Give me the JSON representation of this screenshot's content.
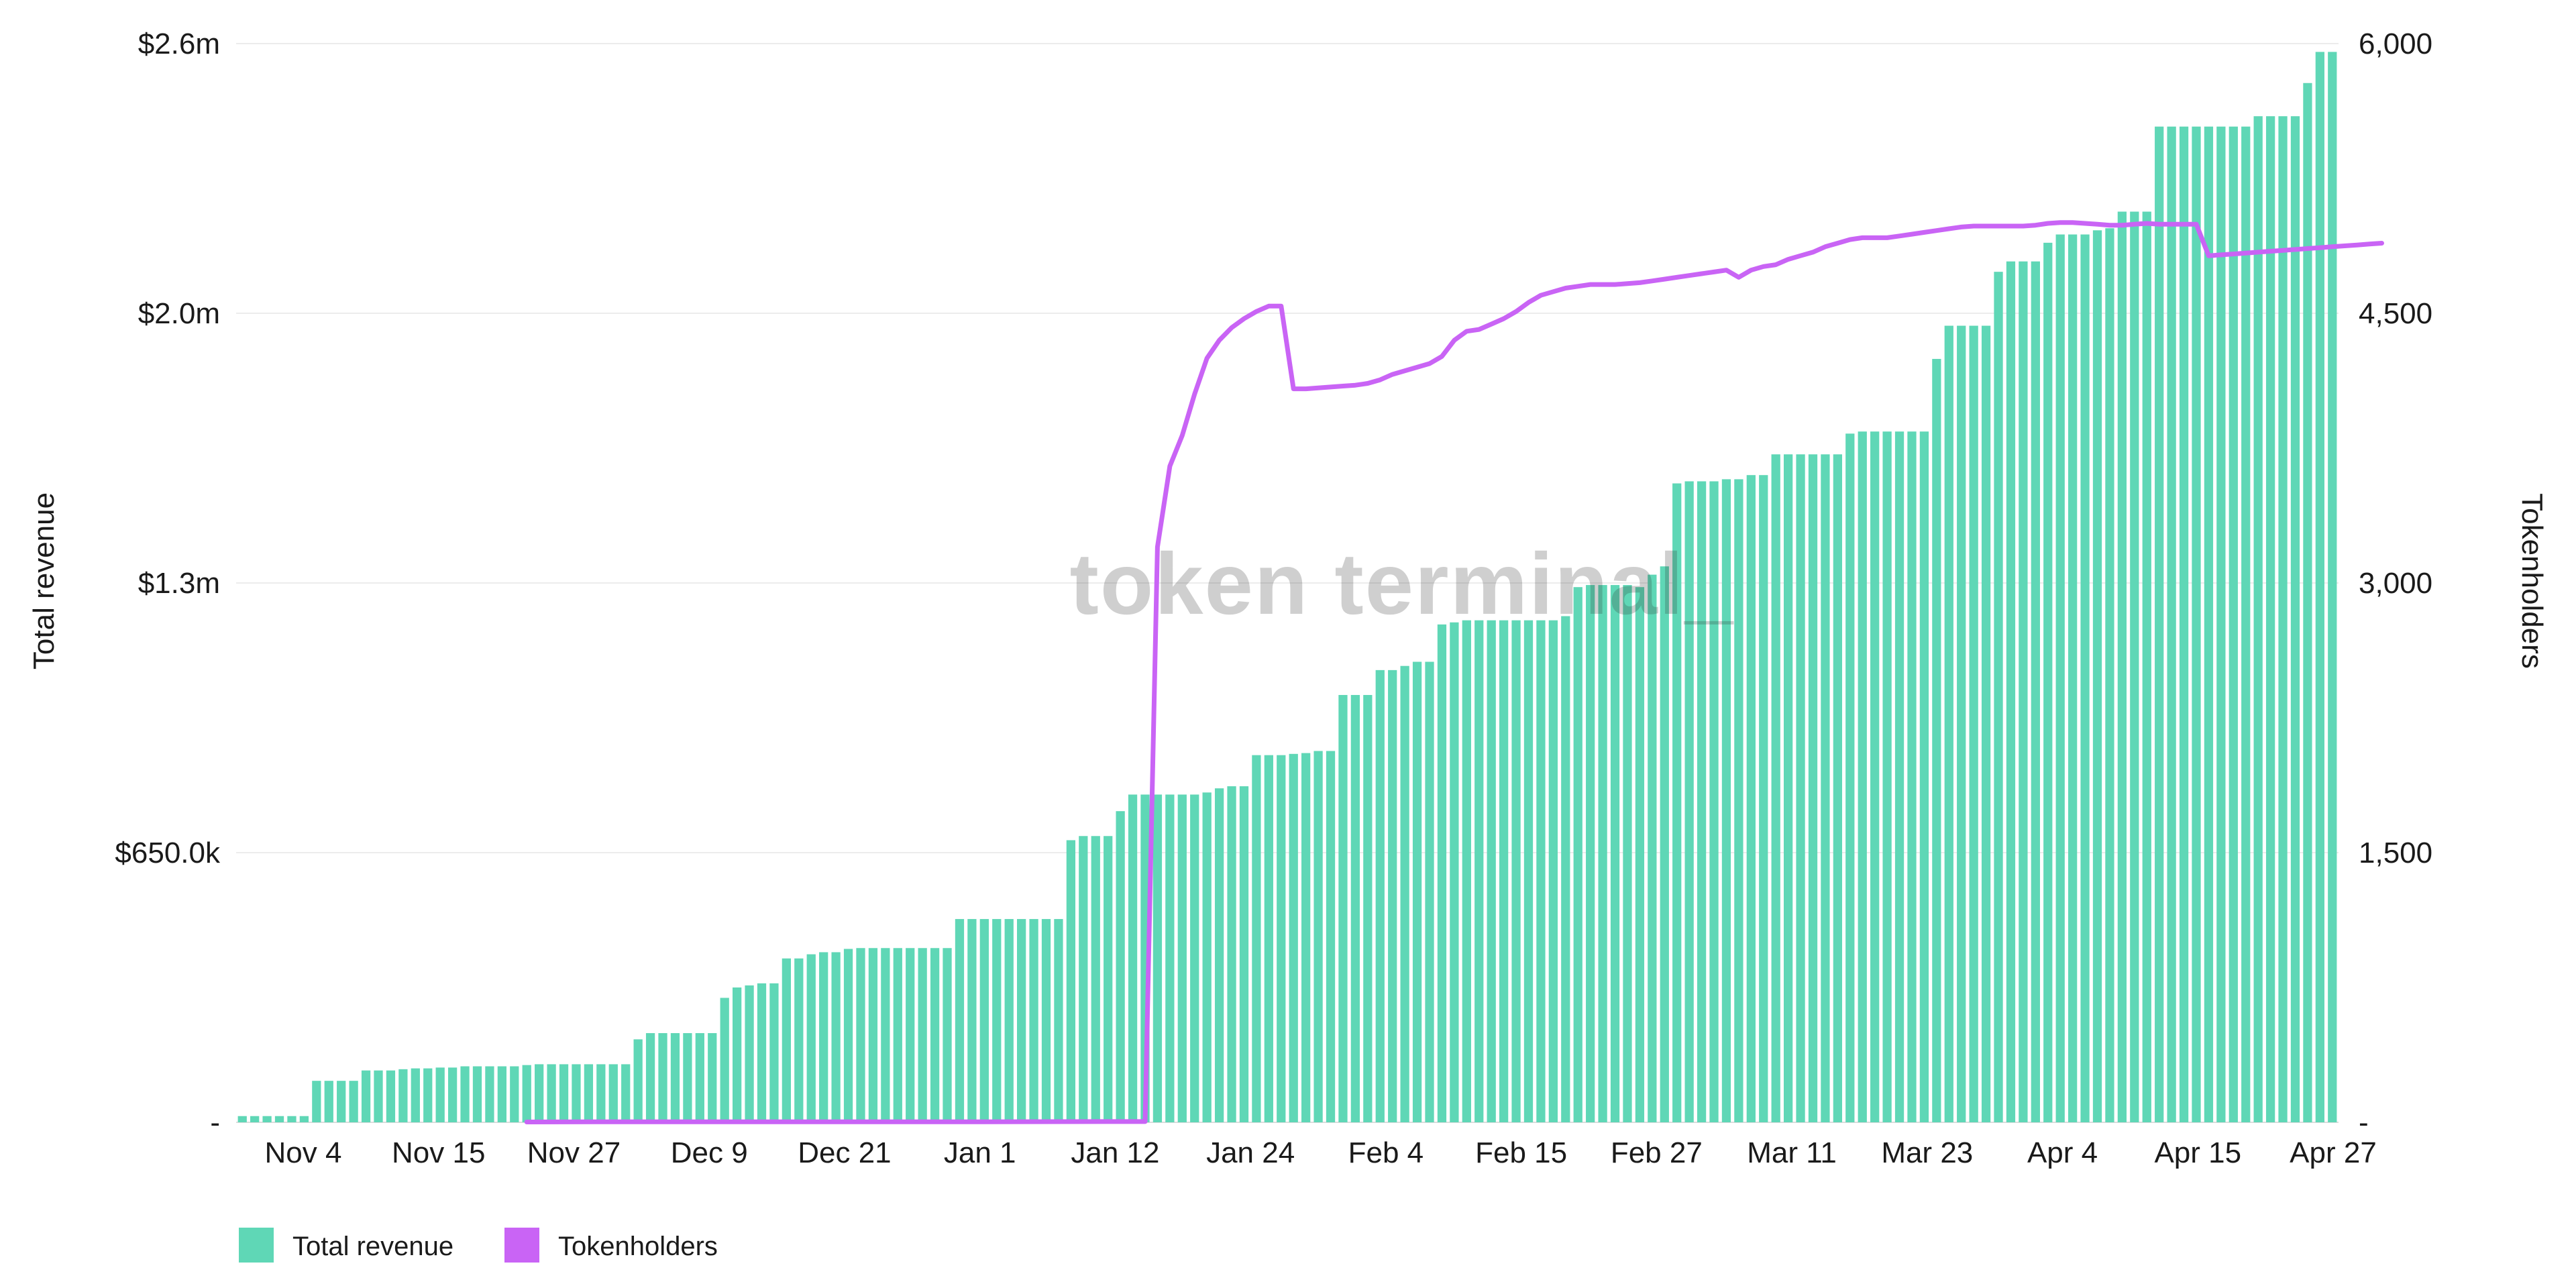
{
  "watermark": "token terminal_",
  "chart_data": {
    "type": "bar+line",
    "left_axis": {
      "label": "Total revenue",
      "ticks": [
        "-",
        "$650.0k",
        "$1.3m",
        "$2.0m",
        "$2.6m"
      ],
      "tick_values": [
        0,
        650000,
        1300000,
        1950000,
        2600000
      ],
      "range": [
        0,
        2600000
      ]
    },
    "right_axis": {
      "label": "Tokenholders",
      "ticks": [
        "-",
        "1,500",
        "3,000",
        "4,500",
        "6,000"
      ],
      "tick_values": [
        0,
        1500,
        3000,
        4500,
        6000
      ],
      "range": [
        0,
        6000
      ]
    },
    "x_ticks": [
      "Nov 4",
      "Nov 15",
      "Nov 27",
      "Dec 9",
      "Dec 21",
      "Jan 1",
      "Jan 12",
      "Jan 24",
      "Feb 4",
      "Feb 15",
      "Feb 27",
      "Mar 11",
      "Mar 23",
      "Apr 4",
      "Apr 15",
      "Apr 27"
    ],
    "grid": "horizontal",
    "legend": [
      {
        "label": "Total revenue",
        "color": "#5fd7b6"
      },
      {
        "label": "Tokenholders",
        "color": "#c964f5"
      }
    ],
    "series": [
      {
        "name": "Total revenue",
        "kind": "bar",
        "axis": "left",
        "color": "#5fd7b6",
        "values": [
          15000,
          15000,
          15000,
          15000,
          15000,
          15000,
          100000,
          100000,
          100000,
          100000,
          125000,
          125000,
          125000,
          128000,
          130000,
          130000,
          132000,
          132000,
          135000,
          135000,
          135000,
          135000,
          135000,
          138000,
          140000,
          140000,
          140000,
          140000,
          140000,
          140000,
          140000,
          140000,
          200000,
          215000,
          215000,
          215000,
          215000,
          215000,
          215000,
          300000,
          325000,
          330000,
          335000,
          335000,
          395000,
          395000,
          405000,
          410000,
          410000,
          418000,
          420000,
          420000,
          420000,
          420000,
          420000,
          420000,
          420000,
          420000,
          490000,
          490000,
          490000,
          490000,
          490000,
          490000,
          490000,
          490000,
          490000,
          680000,
          690000,
          690000,
          690000,
          750000,
          790000,
          790000,
          790000,
          790000,
          790000,
          790000,
          795000,
          805000,
          810000,
          810000,
          885000,
          885000,
          885000,
          888000,
          890000,
          895000,
          895000,
          1030000,
          1030000,
          1030000,
          1090000,
          1090000,
          1100000,
          1110000,
          1110000,
          1200000,
          1205000,
          1210000,
          1210000,
          1210000,
          1210000,
          1210000,
          1210000,
          1210000,
          1210000,
          1220000,
          1290000,
          1295000,
          1295000,
          1295000,
          1295000,
          1290000,
          1320000,
          1340000,
          1540000,
          1545000,
          1545000,
          1545000,
          1550000,
          1550000,
          1560000,
          1560000,
          1610000,
          1610000,
          1610000,
          1610000,
          1610000,
          1610000,
          1660000,
          1665000,
          1665000,
          1665000,
          1665000,
          1665000,
          1665000,
          1840000,
          1920000,
          1920000,
          1920000,
          1920000,
          2050000,
          2075000,
          2075000,
          2075000,
          2120000,
          2140000,
          2140000,
          2140000,
          2150000,
          2155000,
          2195000,
          2195000,
          2195000,
          2400000,
          2400000,
          2400000,
          2400000,
          2400000,
          2400000,
          2400000,
          2400000,
          2425000,
          2425000,
          2425000,
          2425000,
          2505000,
          2580000,
          2580000
        ]
      },
      {
        "name": "Tokenholders",
        "kind": "line",
        "axis": "right",
        "color": "#c964f5",
        "points": [
          [
            23,
            2
          ],
          [
            30,
            3
          ],
          [
            60,
            3
          ],
          [
            70,
            4
          ],
          [
            73,
            4
          ],
          [
            74,
            3200
          ],
          [
            75,
            3650
          ],
          [
            76,
            3820
          ],
          [
            77,
            4050
          ],
          [
            78,
            4250
          ],
          [
            79,
            4350
          ],
          [
            80,
            4420
          ],
          [
            81,
            4470
          ],
          [
            82,
            4510
          ],
          [
            83,
            4540
          ],
          [
            84,
            4540
          ],
          [
            85,
            4080
          ],
          [
            86,
            4080
          ],
          [
            87,
            4085
          ],
          [
            88,
            4090
          ],
          [
            89,
            4095
          ],
          [
            90,
            4100
          ],
          [
            91,
            4110
          ],
          [
            92,
            4130
          ],
          [
            93,
            4160
          ],
          [
            94,
            4180
          ],
          [
            95,
            4200
          ],
          [
            96,
            4220
          ],
          [
            97,
            4260
          ],
          [
            98,
            4350
          ],
          [
            99,
            4400
          ],
          [
            100,
            4410
          ],
          [
            101,
            4440
          ],
          [
            102,
            4470
          ],
          [
            103,
            4510
          ],
          [
            104,
            4560
          ],
          [
            105,
            4600
          ],
          [
            106,
            4620
          ],
          [
            107,
            4640
          ],
          [
            108,
            4650
          ],
          [
            109,
            4660
          ],
          [
            110,
            4660
          ],
          [
            111,
            4660
          ],
          [
            112,
            4665
          ],
          [
            113,
            4670
          ],
          [
            114,
            4680
          ],
          [
            115,
            4690
          ],
          [
            116,
            4700
          ],
          [
            117,
            4710
          ],
          [
            118,
            4720
          ],
          [
            119,
            4730
          ],
          [
            120,
            4740
          ],
          [
            121,
            4700
          ],
          [
            122,
            4740
          ],
          [
            123,
            4760
          ],
          [
            124,
            4770
          ],
          [
            125,
            4800
          ],
          [
            126,
            4820
          ],
          [
            127,
            4840
          ],
          [
            128,
            4870
          ],
          [
            129,
            4890
          ],
          [
            130,
            4910
          ],
          [
            131,
            4920
          ],
          [
            132,
            4920
          ],
          [
            133,
            4920
          ],
          [
            134,
            4930
          ],
          [
            135,
            4940
          ],
          [
            136,
            4950
          ],
          [
            137,
            4960
          ],
          [
            138,
            4970
          ],
          [
            139,
            4980
          ],
          [
            140,
            4985
          ],
          [
            141,
            4985
          ],
          [
            142,
            4985
          ],
          [
            143,
            4985
          ],
          [
            144,
            4985
          ],
          [
            145,
            4990
          ],
          [
            146,
            5000
          ],
          [
            147,
            5005
          ],
          [
            148,
            5005
          ],
          [
            149,
            5000
          ],
          [
            150,
            4995
          ],
          [
            151,
            4990
          ],
          [
            152,
            4990
          ],
          [
            153,
            4995
          ],
          [
            154,
            5000
          ],
          [
            155,
            4995
          ],
          [
            156,
            4995
          ],
          [
            157,
            4995
          ],
          [
            158,
            4995
          ],
          [
            159,
            4820
          ],
          [
            160,
            4825
          ],
          [
            161,
            4830
          ],
          [
            162,
            4835
          ],
          [
            163,
            4840
          ],
          [
            164,
            4845
          ],
          [
            165,
            4850
          ],
          [
            166,
            4855
          ],
          [
            167,
            4860
          ],
          [
            168,
            4865
          ],
          [
            169,
            4870
          ],
          [
            170,
            4875
          ],
          [
            171,
            4880
          ],
          [
            172,
            4885
          ],
          [
            173,
            4890
          ]
        ]
      }
    ]
  }
}
